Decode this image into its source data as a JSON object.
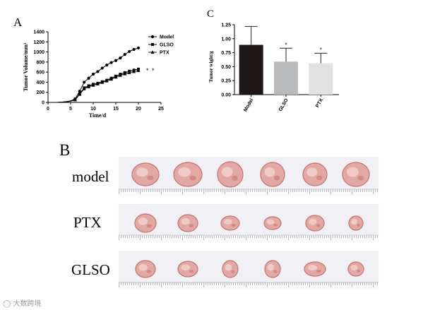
{
  "panel_labels": {
    "a": "A",
    "b": "B",
    "c": "C"
  },
  "photo_rows": [
    {
      "label": "model",
      "tumor_count": 6
    },
    {
      "label": "PTX",
      "tumor_count": 6
    },
    {
      "label": "GLSO",
      "tumor_count": 6
    }
  ],
  "watermark": "大数跨境",
  "colors": {
    "model_bar": "#1e1718",
    "glso_bar": "#b9babc",
    "ptx_bar": "#e2e2e2",
    "tissue": "#e2a9a4",
    "tissue_dark": "#c96f6e"
  },
  "chart_data": [
    {
      "type": "line",
      "panel": "A",
      "xlabel": "Time/d",
      "ylabel": "Tumor Volume/mm³",
      "xlim": [
        0,
        25
      ],
      "ylim": [
        0,
        1400
      ],
      "xticks": [
        0,
        5,
        10,
        15,
        20,
        25
      ],
      "yticks": [
        0,
        200,
        400,
        600,
        800,
        1000,
        1200,
        1400
      ],
      "legend_position": "top-right",
      "significance_marks": [
        "*",
        "*"
      ],
      "series": [
        {
          "name": "Model",
          "marker": "circle",
          "x": [
            0,
            1,
            2,
            3,
            4,
            5,
            6,
            7,
            8,
            9,
            10,
            11,
            12,
            13,
            14,
            15,
            16,
            17,
            18,
            19,
            20
          ],
          "y": [
            0,
            0,
            0,
            5,
            15,
            30,
            70,
            220,
            400,
            480,
            560,
            610,
            680,
            740,
            790,
            830,
            880,
            950,
            1010,
            1050,
            1080
          ]
        },
        {
          "name": "GLSO",
          "marker": "square",
          "x": [
            0,
            1,
            2,
            3,
            4,
            5,
            6,
            7,
            8,
            9,
            10,
            11,
            12,
            13,
            14,
            15,
            16,
            17,
            18,
            19,
            20
          ],
          "y": [
            0,
            0,
            0,
            5,
            12,
            25,
            55,
            170,
            290,
            330,
            360,
            380,
            410,
            440,
            480,
            520,
            560,
            590,
            620,
            640,
            660
          ]
        },
        {
          "name": "PTX",
          "marker": "triangle",
          "x": [
            0,
            1,
            2,
            3,
            4,
            5,
            6,
            7,
            8,
            9,
            10,
            11,
            12,
            13,
            14,
            15,
            16,
            17,
            18,
            19,
            20
          ],
          "y": [
            0,
            0,
            0,
            5,
            10,
            22,
            50,
            160,
            270,
            310,
            340,
            365,
            395,
            425,
            460,
            500,
            535,
            565,
            590,
            610,
            630
          ]
        }
      ]
    },
    {
      "type": "bar",
      "panel": "C",
      "ylabel": "Tumor wight/g",
      "ylim": [
        0,
        1.25
      ],
      "yticks": [
        0.0,
        0.25,
        0.5,
        0.75,
        1.0,
        1.25
      ],
      "categories": [
        "Model",
        "GLSO",
        "PTX"
      ],
      "values": [
        0.89,
        0.59,
        0.56
      ],
      "errors": [
        0.33,
        0.24,
        0.18
      ],
      "annotations": [
        "",
        "*",
        "*"
      ]
    }
  ]
}
